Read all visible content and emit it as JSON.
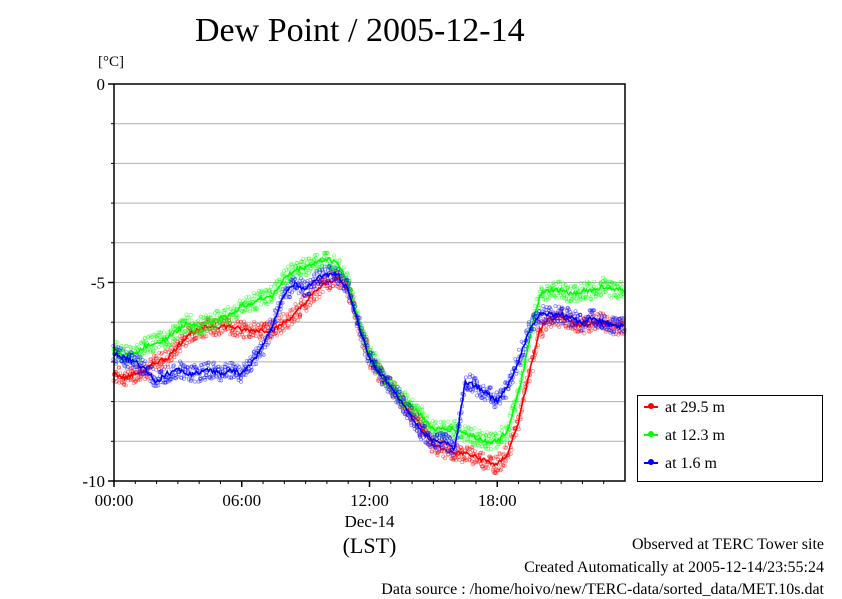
{
  "title": "Dew Point / 2005-12-14",
  "chart_data": {
    "type": "line",
    "title": "Dew Point / 2005-12-14",
    "ylabel": "[°C]",
    "xlabel": "(LST)",
    "x_date_label": "Dec-14",
    "ylim": [
      -10,
      0
    ],
    "xlim": [
      "00:00",
      "24:00"
    ],
    "x_ticks": [
      "00:00",
      "06:00",
      "12:00",
      "18:00"
    ],
    "y_ticks": [
      "0",
      "-5",
      "-10"
    ],
    "grid": true,
    "legend_position": "bottom-right-outside",
    "x": [
      "00:00",
      "00:30",
      "01:00",
      "01:30",
      "02:00",
      "02:30",
      "03:00",
      "03:30",
      "04:00",
      "04:30",
      "05:00",
      "05:30",
      "06:00",
      "06:30",
      "07:00",
      "07:30",
      "08:00",
      "08:30",
      "09:00",
      "09:30",
      "10:00",
      "10:30",
      "11:00",
      "11:30",
      "12:00",
      "12:30",
      "13:00",
      "13:30",
      "14:00",
      "14:30",
      "15:00",
      "15:30",
      "16:00",
      "16:30",
      "17:00",
      "17:30",
      "18:00",
      "18:30",
      "19:00",
      "19:30",
      "20:00",
      "20:30",
      "21:00",
      "21:30",
      "22:00",
      "22:30",
      "23:00",
      "23:30"
    ],
    "series": [
      {
        "name": "at 29.5 m",
        "color": "#ff0000",
        "values": [
          -7.3,
          -7.4,
          -7.3,
          -7.2,
          -7.0,
          -6.9,
          -6.6,
          -6.3,
          -6.2,
          -6.1,
          -6.1,
          -6.1,
          -6.2,
          -6.2,
          -6.2,
          -6.2,
          -6.0,
          -5.8,
          -5.5,
          -5.2,
          -5.0,
          -4.9,
          -5.2,
          -6.0,
          -6.9,
          -7.3,
          -7.6,
          -8.0,
          -8.3,
          -8.7,
          -9.1,
          -9.2,
          -9.3,
          -9.3,
          -9.4,
          -9.5,
          -9.6,
          -9.3,
          -8.5,
          -7.3,
          -6.2,
          -5.9,
          -5.9,
          -6.0,
          -6.1,
          -6.0,
          -6.0,
          -6.1
        ]
      },
      {
        "name": "at 12.3 m",
        "color": "#00ff00",
        "values": [
          -6.7,
          -6.8,
          -6.8,
          -6.6,
          -6.5,
          -6.4,
          -6.2,
          -6.0,
          -6.1,
          -6.0,
          -5.9,
          -5.8,
          -5.6,
          -5.5,
          -5.4,
          -5.3,
          -4.9,
          -4.7,
          -4.6,
          -4.5,
          -4.4,
          -4.5,
          -5.0,
          -6.0,
          -6.8,
          -7.2,
          -7.6,
          -7.9,
          -8.1,
          -8.4,
          -8.7,
          -8.7,
          -8.7,
          -8.8,
          -8.9,
          -9.0,
          -9.0,
          -8.7,
          -7.8,
          -6.5,
          -5.3,
          -5.2,
          -5.2,
          -5.3,
          -5.2,
          -5.2,
          -5.1,
          -5.2
        ]
      },
      {
        "name": "at 1.6 m",
        "color": "#0000ff",
        "values": [
          -6.8,
          -6.9,
          -7.0,
          -7.2,
          -7.5,
          -7.3,
          -7.2,
          -7.3,
          -7.3,
          -7.2,
          -7.3,
          -7.2,
          -7.3,
          -7.0,
          -6.6,
          -6.0,
          -5.3,
          -5.0,
          -5.2,
          -4.9,
          -4.8,
          -4.8,
          -5.2,
          -6.1,
          -6.9,
          -7.3,
          -7.6,
          -8.0,
          -8.4,
          -8.8,
          -9.0,
          -9.0,
          -9.2,
          -7.5,
          -7.6,
          -7.8,
          -8.0,
          -7.6,
          -7.0,
          -6.2,
          -5.8,
          -5.8,
          -5.8,
          -5.9,
          -6.0,
          -5.9,
          -6.0,
          -6.1
        ]
      }
    ]
  },
  "footer": {
    "line1": "Observed at TERC Tower site",
    "line2": "Created Automatically at 2005-12-14/23:55:24",
    "line3": "Data source : /home/hoivo/new/TERC-data/sorted_data/MET.10s.dat"
  }
}
